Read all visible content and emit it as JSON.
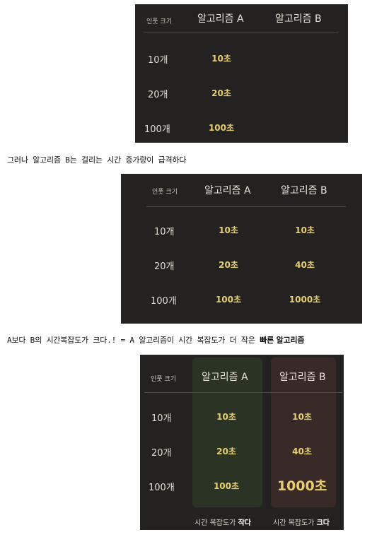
{
  "table1": {
    "header": {
      "size": "인풋 크기",
      "algo_a": "알고리즘 A",
      "algo_b": "알고리즘 B"
    },
    "rows": [
      {
        "size": "10개",
        "a": "10초",
        "b": ""
      },
      {
        "size": "20개",
        "a": "20초",
        "b": ""
      },
      {
        "size": "100개",
        "a": "100초",
        "b": ""
      }
    ]
  },
  "caption1": "그러나 알고리즘 B는 걸리는 시간 증가량이 급격하다",
  "table2": {
    "header": {
      "size": "인풋 크기",
      "algo_a": "알고리즘 A",
      "algo_b": "알고리즘 B"
    },
    "rows": [
      {
        "size": "10개",
        "a": "10초",
        "b": "10초"
      },
      {
        "size": "20개",
        "a": "20초",
        "b": "40초"
      },
      {
        "size": "100개",
        "a": "100초",
        "b": "1000초"
      }
    ]
  },
  "caption2": {
    "plain": "A보다 B의 시간복잡도가 크다.! = A 알고리즘이 시간 복잡도가 더 작은 ",
    "bold": "빠른 알고리즘"
  },
  "table3": {
    "header": {
      "size": "인풋 크기",
      "algo_a": "알고리즘 A",
      "algo_b": "알고리즘 B"
    },
    "rows": [
      {
        "size": "10개",
        "a": "10초",
        "b": "10초"
      },
      {
        "size": "20개",
        "a": "20초",
        "b": "40초"
      },
      {
        "size": "100개",
        "a": "100초",
        "b": "1000초"
      }
    ],
    "footer_a": {
      "plain": "시간 복잡도가 ",
      "bold": "작다"
    },
    "footer_b": {
      "plain": "시간 복잡도가 ",
      "bold": "크다"
    }
  },
  "colors": {
    "panel": "#242220",
    "value": "#e7cf6e",
    "col_a_bg": "#2b3424",
    "col_b_bg": "#3a2a27"
  }
}
